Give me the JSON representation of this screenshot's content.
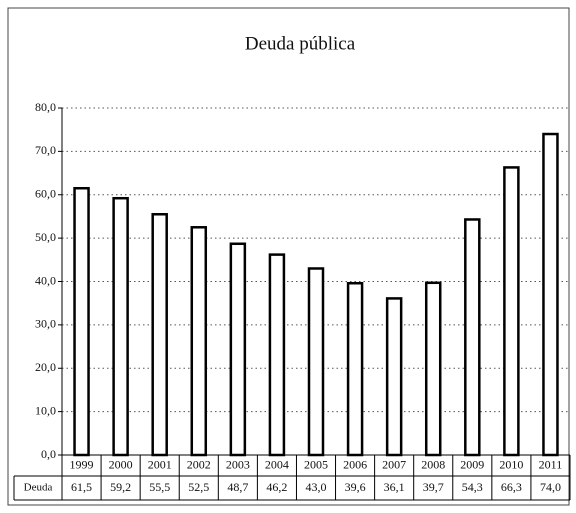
{
  "chart_data": {
    "type": "bar",
    "title": "Deuda pública",
    "categories": [
      "1999",
      "2000",
      "2001",
      "2002",
      "2003",
      "2004",
      "2005",
      "2006",
      "2007",
      "2008",
      "2009",
      "2010",
      "2011"
    ],
    "series": [
      {
        "name": "Deuda",
        "color": "#ffffff",
        "values": [
          61.5,
          59.2,
          55.5,
          52.5,
          48.7,
          46.2,
          43.0,
          39.6,
          36.1,
          39.7,
          54.3,
          66.3,
          74.0
        ],
        "value_labels": [
          "61,5",
          "59,2",
          "55,5",
          "52,5",
          "48,7",
          "46,2",
          "43,0",
          "39,6",
          "36,1",
          "39,7",
          "54,3",
          "66,3",
          "74,0"
        ]
      }
    ],
    "ylim": [
      0,
      80
    ],
    "yticks": [
      {
        "value": 0,
        "label": "0,0"
      },
      {
        "value": 10,
        "label": "10,0"
      },
      {
        "value": 20,
        "label": "20,0"
      },
      {
        "value": 30,
        "label": "30,0"
      },
      {
        "value": 40,
        "label": "40,0"
      },
      {
        "value": 50,
        "label": "50,0"
      },
      {
        "value": 60,
        "label": "60,0"
      },
      {
        "value": 70,
        "label": "70,0"
      },
      {
        "value": 80,
        "label": "80,0"
      }
    ],
    "grid": true
  }
}
